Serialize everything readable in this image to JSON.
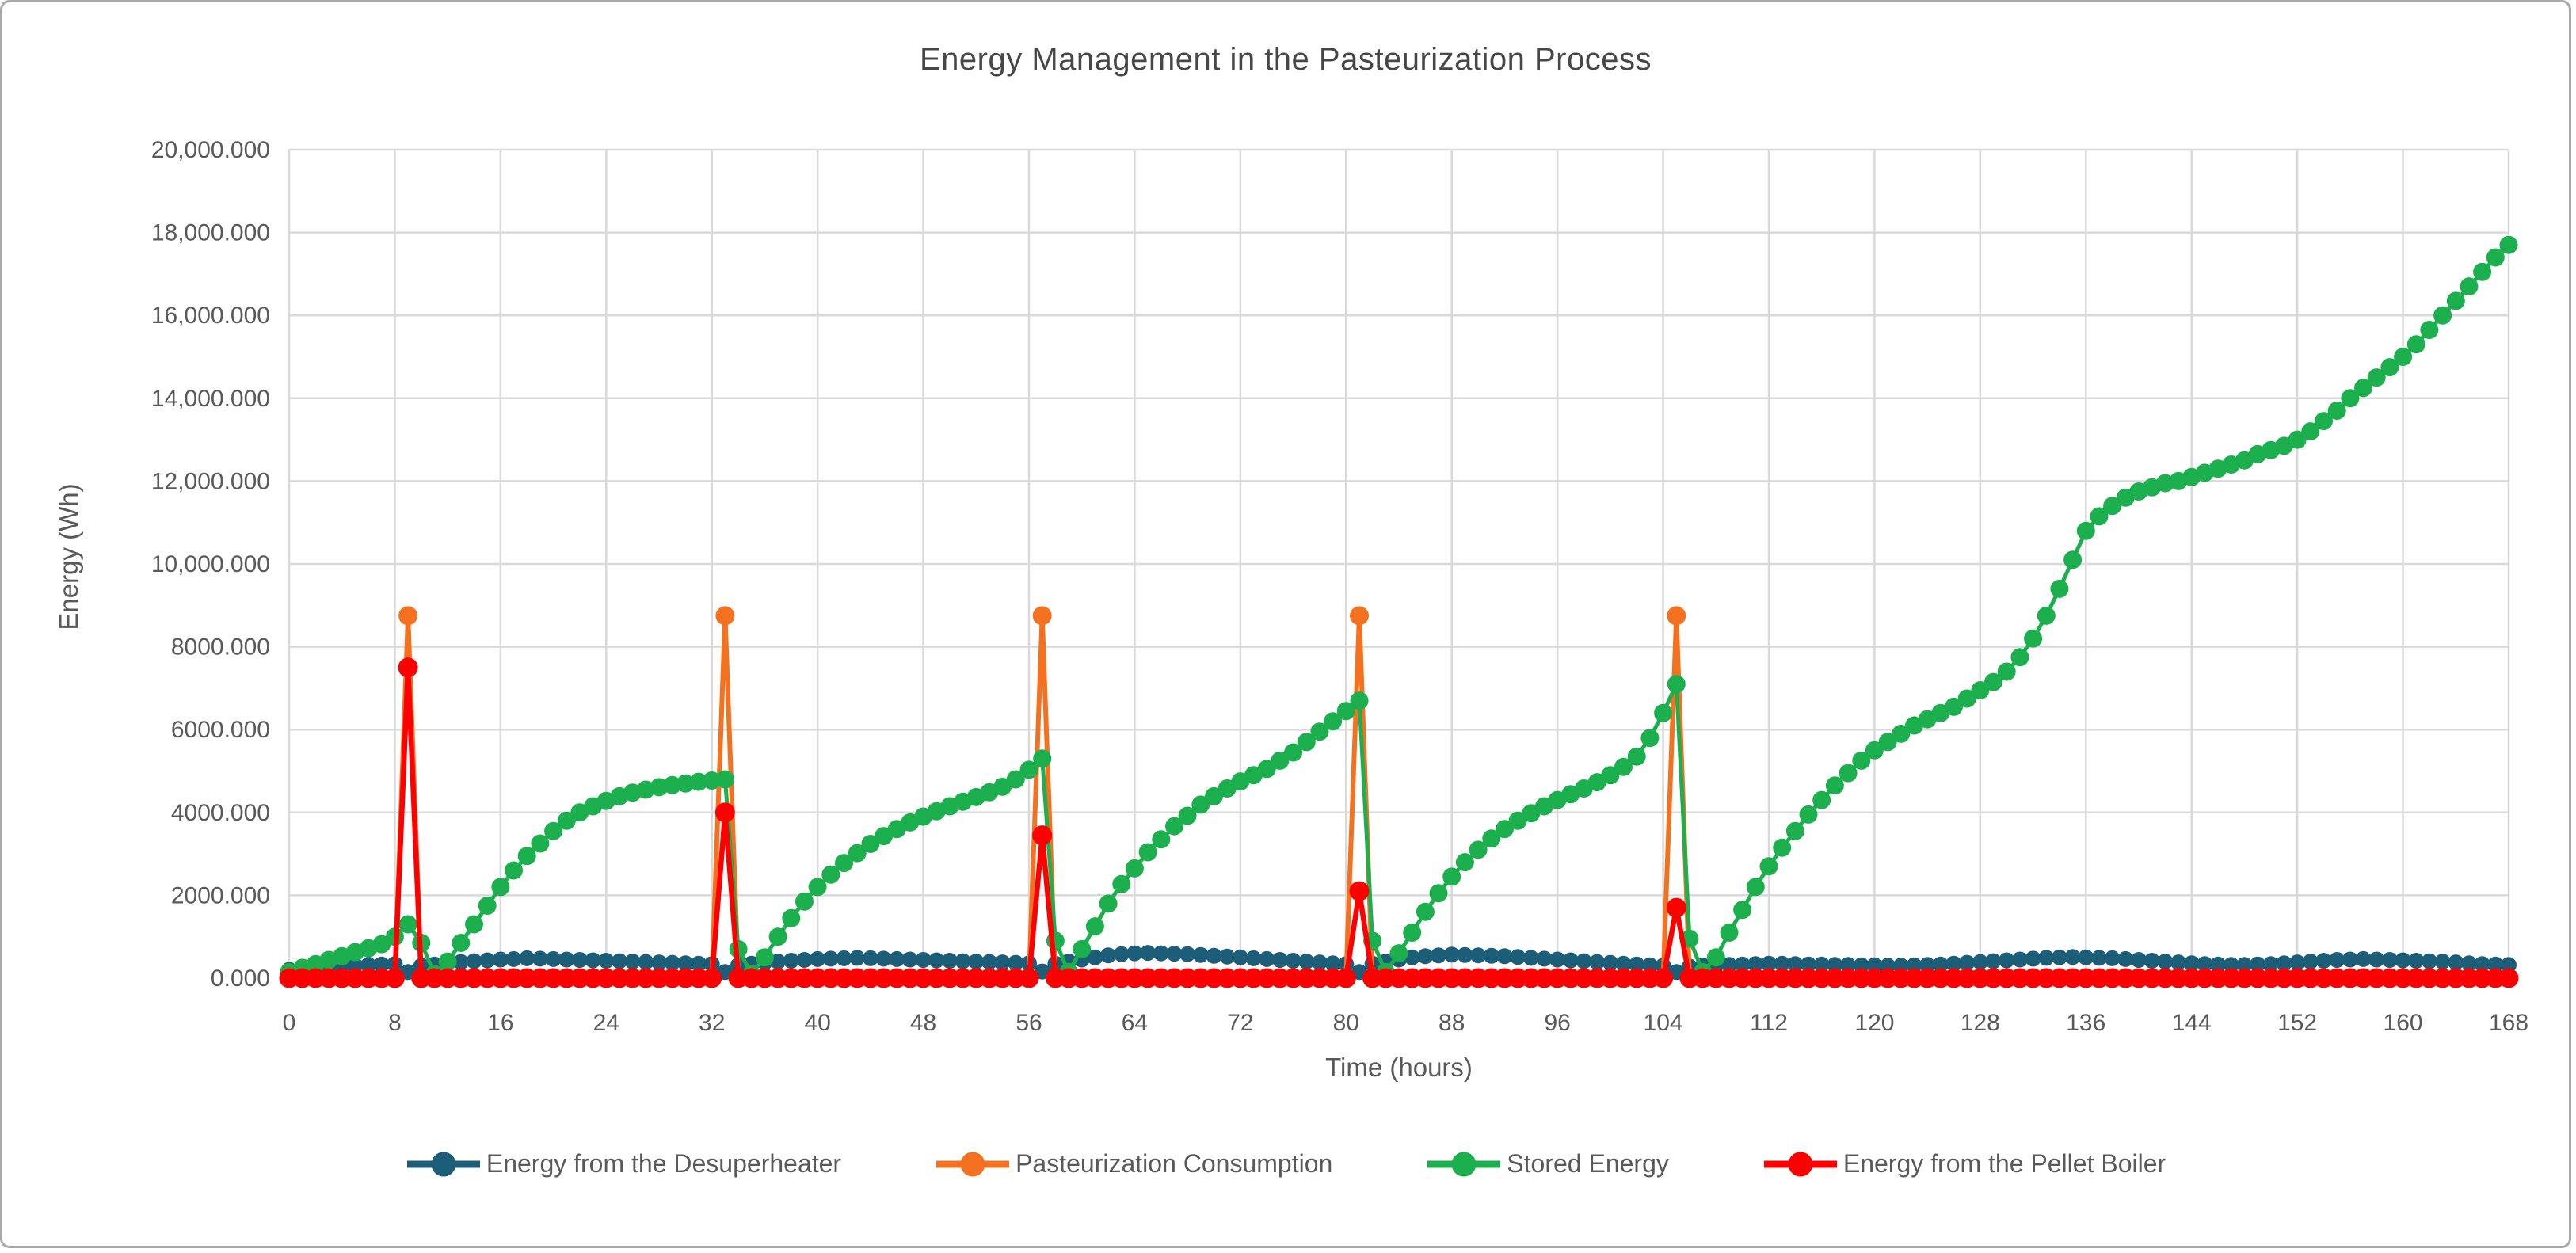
{
  "figure": {
    "title": "Energy Management in the Pasteurization Process",
    "x_axis_title": "Time (hours)",
    "y_axis_title": "Energy (Wh)"
  },
  "colors": {
    "background": "#FFFFFF",
    "frame_border": "#A9A9A9",
    "grid": "#D9D9D9",
    "axis_text": "#595959",
    "title_text": "#474747"
  },
  "chart_data": {
    "type": "line",
    "title": "Energy Management in the Pasteurization Process",
    "xlabel": "Time (hours)",
    "ylabel": "Energy (Wh)",
    "xlim": [
      0,
      168
    ],
    "ylim": [
      0,
      20000
    ],
    "grid": true,
    "legend_position": "bottom",
    "x_ticks": [
      0,
      8,
      16,
      24,
      32,
      40,
      48,
      56,
      64,
      72,
      80,
      88,
      96,
      104,
      112,
      120,
      128,
      136,
      144,
      152,
      160,
      168
    ],
    "y_ticks": [
      {
        "value": 0,
        "label": "0.000"
      },
      {
        "value": 2000,
        "label": "2000.000"
      },
      {
        "value": 4000,
        "label": "4000.000"
      },
      {
        "value": 6000,
        "label": "6000.000"
      },
      {
        "value": 8000,
        "label": "8000.000"
      },
      {
        "value": 10000,
        "label": "10,000.000"
      },
      {
        "value": 12000,
        "label": "12,000.000"
      },
      {
        "value": 14000,
        "label": "14,000.000"
      },
      {
        "value": 16000,
        "label": "16,000.000"
      },
      {
        "value": 18000,
        "label": "18,000.000"
      },
      {
        "value": 20000,
        "label": "20,000.000"
      }
    ],
    "hours": {
      "start": 0,
      "step": 1,
      "count": 169
    },
    "series": [
      {
        "id": "desuperheater",
        "name": "Energy from the Desuperheater",
        "color": "#1C5D77",
        "values": [
          200,
          230,
          260,
          280,
          300,
          310,
          320,
          330,
          340,
          150,
          300,
          330,
          360,
          390,
          410,
          430,
          450,
          460,
          480,
          470,
          460,
          450,
          440,
          430,
          420,
          410,
          400,
          390,
          380,
          370,
          360,
          350,
          340,
          150,
          320,
          350,
          380,
          400,
          420,
          440,
          460,
          470,
          480,
          490,
          480,
          470,
          460,
          450,
          440,
          430,
          420,
          410,
          400,
          390,
          380,
          370,
          360,
          160,
          350,
          400,
          450,
          500,
          550,
          580,
          600,
          610,
          600,
          590,
          580,
          560,
          540,
          520,
          500,
          480,
          460,
          440,
          420,
          400,
          380,
          360,
          340,
          150,
          350,
          400,
          450,
          500,
          530,
          550,
          570,
          560,
          550,
          540,
          530,
          510,
          490,
          470,
          450,
          430,
          410,
          390,
          370,
          350,
          330,
          310,
          300,
          150,
          280,
          300,
          310,
          320,
          330,
          340,
          350,
          350,
          340,
          330,
          330,
          320,
          320,
          310,
          310,
          300,
          300,
          310,
          320,
          330,
          350,
          370,
          390,
          410,
          430,
          450,
          470,
          490,
          500,
          510,
          500,
          490,
          480,
          460,
          440,
          420,
          400,
          380,
          360,
          340,
          330,
          320,
          320,
          330,
          340,
          360,
          380,
          400,
          420,
          440,
          450,
          460,
          450,
          440,
          430,
          420,
          410,
          400,
          380,
          360,
          340,
          330,
          320
        ]
      },
      {
        "id": "consumption",
        "name": "Pasteurization Consumption",
        "color": "#F4711F",
        "values": [
          0,
          0,
          0,
          0,
          0,
          0,
          0,
          0,
          0,
          8750,
          0,
          0,
          0,
          0,
          0,
          0,
          0,
          0,
          0,
          0,
          0,
          0,
          0,
          0,
          0,
          0,
          0,
          0,
          0,
          0,
          0,
          0,
          0,
          8750,
          0,
          0,
          0,
          0,
          0,
          0,
          0,
          0,
          0,
          0,
          0,
          0,
          0,
          0,
          0,
          0,
          0,
          0,
          0,
          0,
          0,
          0,
          0,
          8750,
          0,
          0,
          0,
          0,
          0,
          0,
          0,
          0,
          0,
          0,
          0,
          0,
          0,
          0,
          0,
          0,
          0,
          0,
          0,
          0,
          0,
          0,
          0,
          8750,
          0,
          0,
          0,
          0,
          0,
          0,
          0,
          0,
          0,
          0,
          0,
          0,
          0,
          0,
          0,
          0,
          0,
          0,
          0,
          0,
          0,
          0,
          0,
          8750,
          0,
          0,
          0,
          0,
          0,
          0,
          0,
          0,
          0,
          0,
          0,
          0,
          0,
          0,
          0,
          0,
          0,
          0,
          0,
          0,
          0,
          0,
          0,
          0,
          0,
          0,
          0,
          0,
          0,
          0,
          0,
          0,
          0,
          0,
          0,
          0,
          0,
          0,
          0,
          0,
          0,
          0,
          0,
          0,
          0,
          0,
          0,
          0,
          0,
          0,
          0,
          0,
          0,
          0,
          0,
          0,
          0,
          0,
          0,
          0,
          0,
          0,
          0
        ]
      },
      {
        "id": "stored",
        "name": "Stored Energy",
        "color": "#1BAF4D",
        "values": [
          150,
          250,
          340,
          440,
          530,
          630,
          720,
          820,
          1000,
          1300,
          850,
          100,
          400,
          850,
          1300,
          1750,
          2200,
          2600,
          2950,
          3250,
          3550,
          3800,
          4000,
          4150,
          4280,
          4390,
          4480,
          4550,
          4610,
          4660,
          4700,
          4740,
          4770,
          4800,
          700,
          100,
          500,
          1000,
          1450,
          1850,
          2200,
          2500,
          2780,
          3020,
          3240,
          3430,
          3600,
          3760,
          3900,
          4030,
          4150,
          4260,
          4370,
          4490,
          4620,
          4800,
          5030,
          5300,
          900,
          150,
          700,
          1250,
          1800,
          2270,
          2650,
          3040,
          3350,
          3670,
          3920,
          4190,
          4390,
          4580,
          4750,
          4900,
          5050,
          5250,
          5450,
          5700,
          5950,
          6200,
          6450,
          6700,
          900,
          150,
          600,
          1100,
          1600,
          2050,
          2450,
          2800,
          3100,
          3370,
          3600,
          3800,
          3980,
          4150,
          4300,
          4440,
          4580,
          4730,
          4900,
          5100,
          5350,
          5800,
          6400,
          7100,
          950,
          150,
          500,
          1100,
          1650,
          2200,
          2700,
          3150,
          3550,
          3950,
          4300,
          4650,
          4950,
          5250,
          5500,
          5700,
          5900,
          6100,
          6250,
          6400,
          6550,
          6750,
          6950,
          7150,
          7400,
          7750,
          8200,
          8750,
          9400,
          10100,
          10800,
          11150,
          11400,
          11600,
          11750,
          11850,
          11950,
          12000,
          12100,
          12200,
          12300,
          12400,
          12500,
          12650,
          12750,
          12850,
          13000,
          13200,
          13450,
          13700,
          14000,
          14250,
          14500,
          14750,
          15000,
          15300,
          15650,
          16000,
          16350,
          16700,
          17050,
          17400,
          17700
        ]
      },
      {
        "id": "pellet-boiler",
        "name": "Energy from the Pellet Boiler",
        "color": "#FF0000",
        "values": [
          0,
          0,
          0,
          0,
          0,
          0,
          0,
          0,
          0,
          7500,
          0,
          0,
          0,
          0,
          0,
          0,
          0,
          0,
          0,
          0,
          0,
          0,
          0,
          0,
          0,
          0,
          0,
          0,
          0,
          0,
          0,
          0,
          0,
          4000,
          0,
          0,
          0,
          0,
          0,
          0,
          0,
          0,
          0,
          0,
          0,
          0,
          0,
          0,
          0,
          0,
          0,
          0,
          0,
          0,
          0,
          0,
          0,
          3450,
          0,
          0,
          0,
          0,
          0,
          0,
          0,
          0,
          0,
          0,
          0,
          0,
          0,
          0,
          0,
          0,
          0,
          0,
          0,
          0,
          0,
          0,
          0,
          2100,
          0,
          0,
          0,
          0,
          0,
          0,
          0,
          0,
          0,
          0,
          0,
          0,
          0,
          0,
          0,
          0,
          0,
          0,
          0,
          0,
          0,
          0,
          0,
          1700,
          0,
          0,
          0,
          0,
          0,
          0,
          0,
          0,
          0,
          0,
          0,
          0,
          0,
          0,
          0,
          0,
          0,
          0,
          0,
          0,
          0,
          0,
          0,
          0,
          0,
          0,
          0,
          0,
          0,
          0,
          0,
          0,
          0,
          0,
          0,
          0,
          0,
          0,
          0,
          0,
          0,
          0,
          0,
          0,
          0,
          0,
          0,
          0,
          0,
          0,
          0,
          0,
          0,
          0,
          0,
          0,
          0,
          0,
          0,
          0,
          0,
          0,
          0
        ]
      }
    ]
  }
}
